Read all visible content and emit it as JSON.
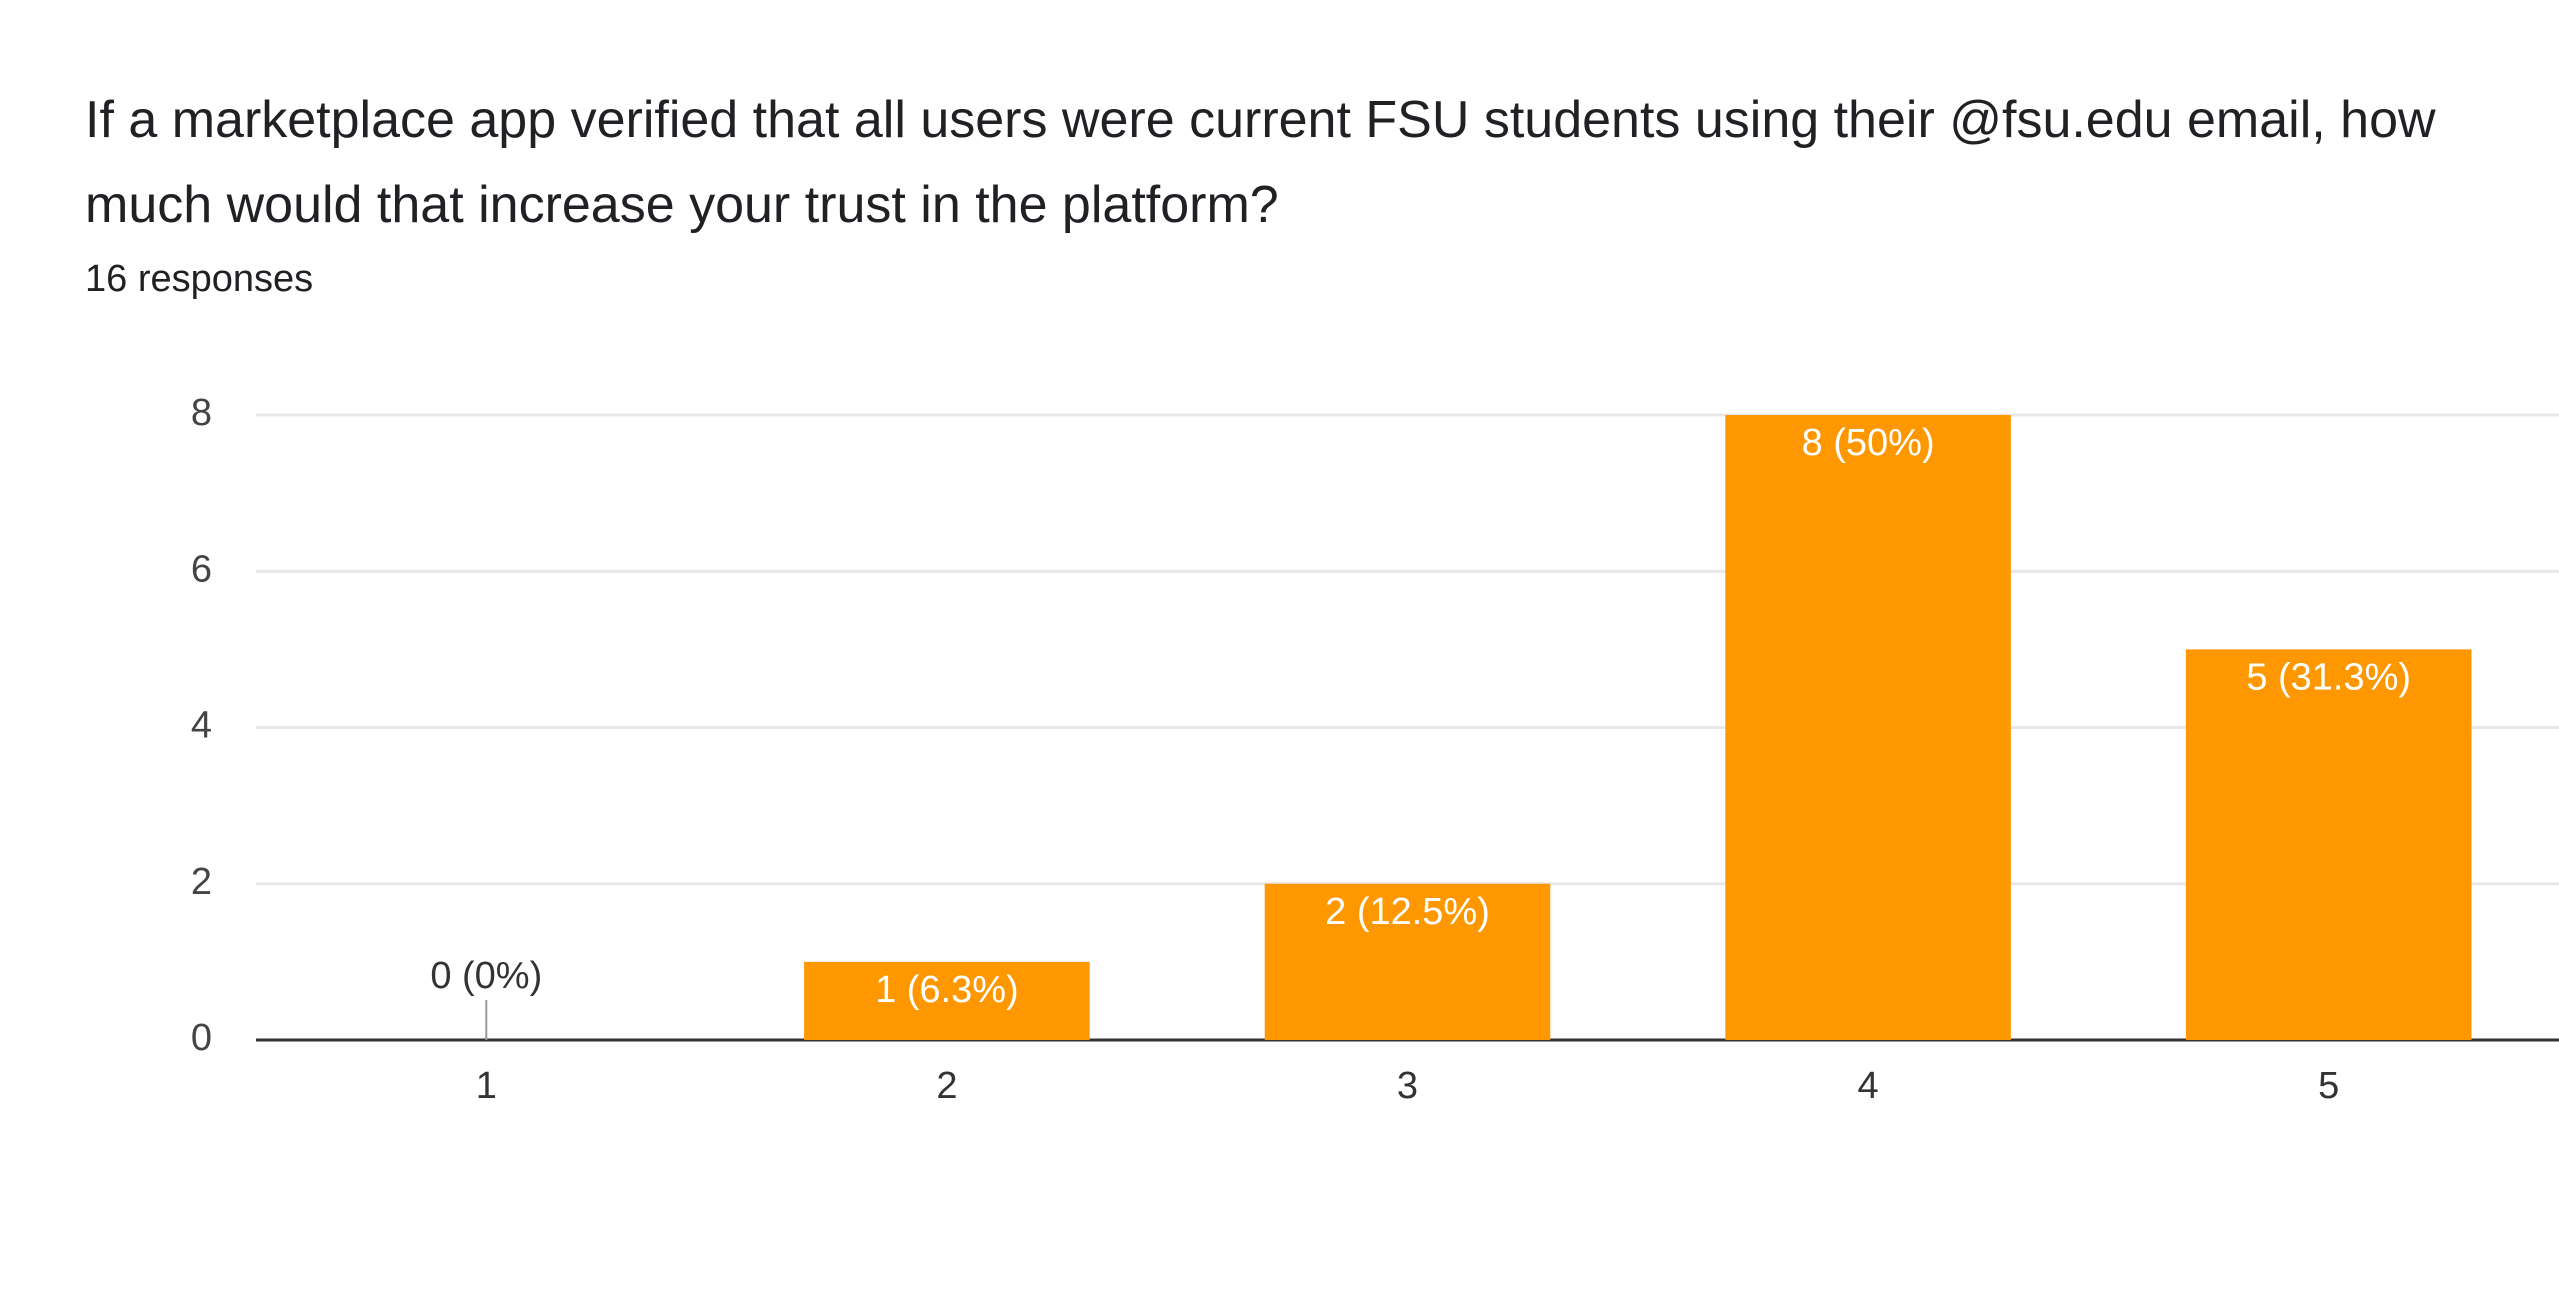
{
  "chart_data": {
    "type": "bar",
    "title": "If a marketplace app verified that all users were current FSU students using their @fsu.edu email, how much would that increase your trust in the platform?",
    "subtitle": "16 responses",
    "categories": [
      "1",
      "2",
      "3",
      "4",
      "5"
    ],
    "values": [
      0,
      1,
      2,
      8,
      5
    ],
    "value_labels": [
      "0 (0%)",
      "1 (6.3%)",
      "2 (12.5%)",
      "8 (50%)",
      "5 (31.3%)"
    ],
    "color": "#ff9800",
    "ylim": [
      0,
      8
    ],
    "yticks": [
      0,
      2,
      4,
      6,
      8
    ],
    "grid": true
  }
}
